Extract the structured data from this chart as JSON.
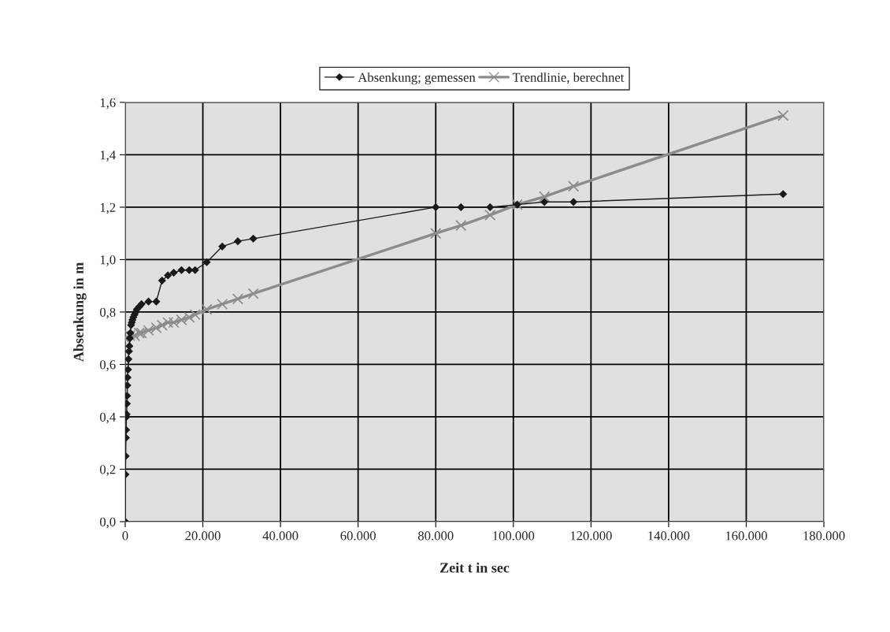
{
  "chart_data": {
    "type": "line",
    "xlabel": "Zeit t in sec",
    "ylabel": "Absenkung in m",
    "xlim": [
      0,
      180000
    ],
    "ylim": [
      0,
      1.6
    ],
    "xticks": [
      {
        "value": 0,
        "label": "0"
      },
      {
        "value": 20000,
        "label": "20.000"
      },
      {
        "value": 40000,
        "label": "40.000"
      },
      {
        "value": 60000,
        "label": "60.000"
      },
      {
        "value": 80000,
        "label": "80.000"
      },
      {
        "value": 100000,
        "label": "100.000"
      },
      {
        "value": 120000,
        "label": "120.000"
      },
      {
        "value": 140000,
        "label": "140.000"
      },
      {
        "value": 160000,
        "label": "160.000"
      },
      {
        "value": 180000,
        "label": "180.000"
      }
    ],
    "yticks": [
      {
        "value": 0,
        "label": "0,0"
      },
      {
        "value": 0.2,
        "label": "0,2"
      },
      {
        "value": 0.4,
        "label": "0,4"
      },
      {
        "value": 0.6,
        "label": "0,6"
      },
      {
        "value": 0.8,
        "label": "0,8"
      },
      {
        "value": 1.0,
        "label": "1,0"
      },
      {
        "value": 1.2,
        "label": "1,2"
      },
      {
        "value": 1.4,
        "label": "1,4"
      },
      {
        "value": 1.6,
        "label": "1,6"
      }
    ],
    "grid": true,
    "legend": "top",
    "series": [
      {
        "name": "Absenkung; gemessen",
        "color": "#1a1a1a",
        "marker": "diamond",
        "x": [
          0,
          60,
          120,
          180,
          240,
          300,
          360,
          420,
          480,
          540,
          600,
          720,
          840,
          960,
          1080,
          1200,
          1320,
          1500,
          1680,
          1860,
          2100,
          2400,
          2700,
          3000,
          3600,
          4200,
          6000,
          8000,
          9500,
          11000,
          12500,
          14500,
          16500,
          18000,
          21000,
          25000,
          29000,
          33000,
          80000,
          86500,
          94000,
          101000,
          108000,
          115500,
          169500
        ],
        "values": [
          0,
          0.18,
          0.25,
          0.32,
          0.35,
          0.4,
          0.41,
          0.45,
          0.48,
          0.52,
          0.55,
          0.58,
          0.62,
          0.65,
          0.67,
          0.7,
          0.72,
          0.75,
          0.76,
          0.77,
          0.78,
          0.79,
          0.8,
          0.81,
          0.82,
          0.83,
          0.84,
          0.84,
          0.92,
          0.94,
          0.95,
          0.96,
          0.96,
          0.96,
          0.99,
          1.05,
          1.07,
          1.08,
          1.2,
          1.2,
          1.2,
          1.21,
          1.22,
          1.22,
          1.25
        ]
      },
      {
        "name": "Trendlinie, berechnet",
        "color": "#8c8c8c",
        "marker": "cross",
        "x": [
          0,
          1200,
          2400,
          3600,
          4200,
          6000,
          8000,
          9500,
          11000,
          12500,
          14500,
          16500,
          18000,
          21000,
          25000,
          29000,
          33000,
          80000,
          86500,
          94000,
          101000,
          108000,
          115500,
          169500
        ],
        "values": [
          0.7,
          0.71,
          0.71,
          0.72,
          0.72,
          0.73,
          0.74,
          0.75,
          0.76,
          0.76,
          0.77,
          0.78,
          0.79,
          0.81,
          0.83,
          0.85,
          0.87,
          1.1,
          1.13,
          1.17,
          1.21,
          1.24,
          1.28,
          1.55
        ]
      }
    ]
  }
}
